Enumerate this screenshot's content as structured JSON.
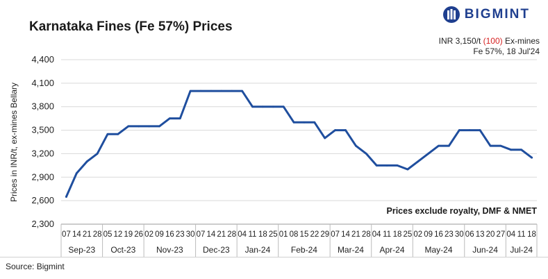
{
  "header": {
    "title": "Karnataka Fines (Fe 57%) Prices",
    "brand": "BIGMINT",
    "note_prefix": "INR 3,150/t ",
    "note_change": "(100)",
    "note_suffix": " Ex-mines",
    "note_line2": "Fe 57%, 18 Jul'24"
  },
  "footer": {
    "source": "Source: Bigmint"
  },
  "colors": {
    "line": "#1f4e9e",
    "brand": "#1f3f8f",
    "change": "#d62020",
    "grid": "#d9d9d9"
  },
  "chart_data": {
    "type": "line",
    "title": "Karnataka Fines (Fe 57%) Prices",
    "ylabel": "Prices in INR/t, ex-mines Bellary",
    "ylim": [
      2300,
      4400
    ],
    "yticks": [
      "2,300",
      "2,600",
      "2,900",
      "3,200",
      "3,500",
      "3,800",
      "4,100",
      "4,400"
    ],
    "ytick_values": [
      2300,
      2600,
      2900,
      3200,
      3500,
      3800,
      4100,
      4400
    ],
    "annotation": "Prices exclude royalty, DMF & NMET",
    "grid": true,
    "x": [
      "07",
      "14",
      "21",
      "28",
      "05",
      "12",
      "19",
      "26",
      "02",
      "09",
      "16",
      "23",
      "30",
      "07",
      "14",
      "21",
      "28",
      "04",
      "11",
      "18",
      "25",
      "01",
      "08",
      "15",
      "22",
      "29",
      "07",
      "14",
      "21",
      "28",
      "04",
      "11",
      "18",
      "25",
      "02",
      "09",
      "16",
      "23",
      "30",
      "06",
      "13",
      "20",
      "27",
      "04",
      "11",
      "18"
    ],
    "values": [
      2650,
      2950,
      3100,
      3200,
      3450,
      3450,
      3550,
      3550,
      3550,
      3550,
      3650,
      3650,
      4000,
      4000,
      4000,
      4000,
      4000,
      4000,
      3800,
      3800,
      3800,
      3800,
      3600,
      3600,
      3600,
      3400,
      3500,
      3500,
      3300,
      3200,
      3050,
      3050,
      3050,
      3000,
      3100,
      3200,
      3300,
      3300,
      3500,
      3500,
      3500,
      3300,
      3300,
      3250,
      3250,
      3150
    ],
    "months": [
      {
        "label": "Sep-23",
        "count": 4
      },
      {
        "label": "Oct-23",
        "count": 4
      },
      {
        "label": "Nov-23",
        "count": 5
      },
      {
        "label": "Dec-23",
        "count": 4
      },
      {
        "label": "Jan-24",
        "count": 4
      },
      {
        "label": "Feb-24",
        "count": 5
      },
      {
        "label": "Mar-24",
        "count": 4
      },
      {
        "label": "Apr-24",
        "count": 4
      },
      {
        "label": "May-24",
        "count": 5
      },
      {
        "label": "Jun-24",
        "count": 4
      },
      {
        "label": "Jul-24",
        "count": 3
      }
    ]
  }
}
